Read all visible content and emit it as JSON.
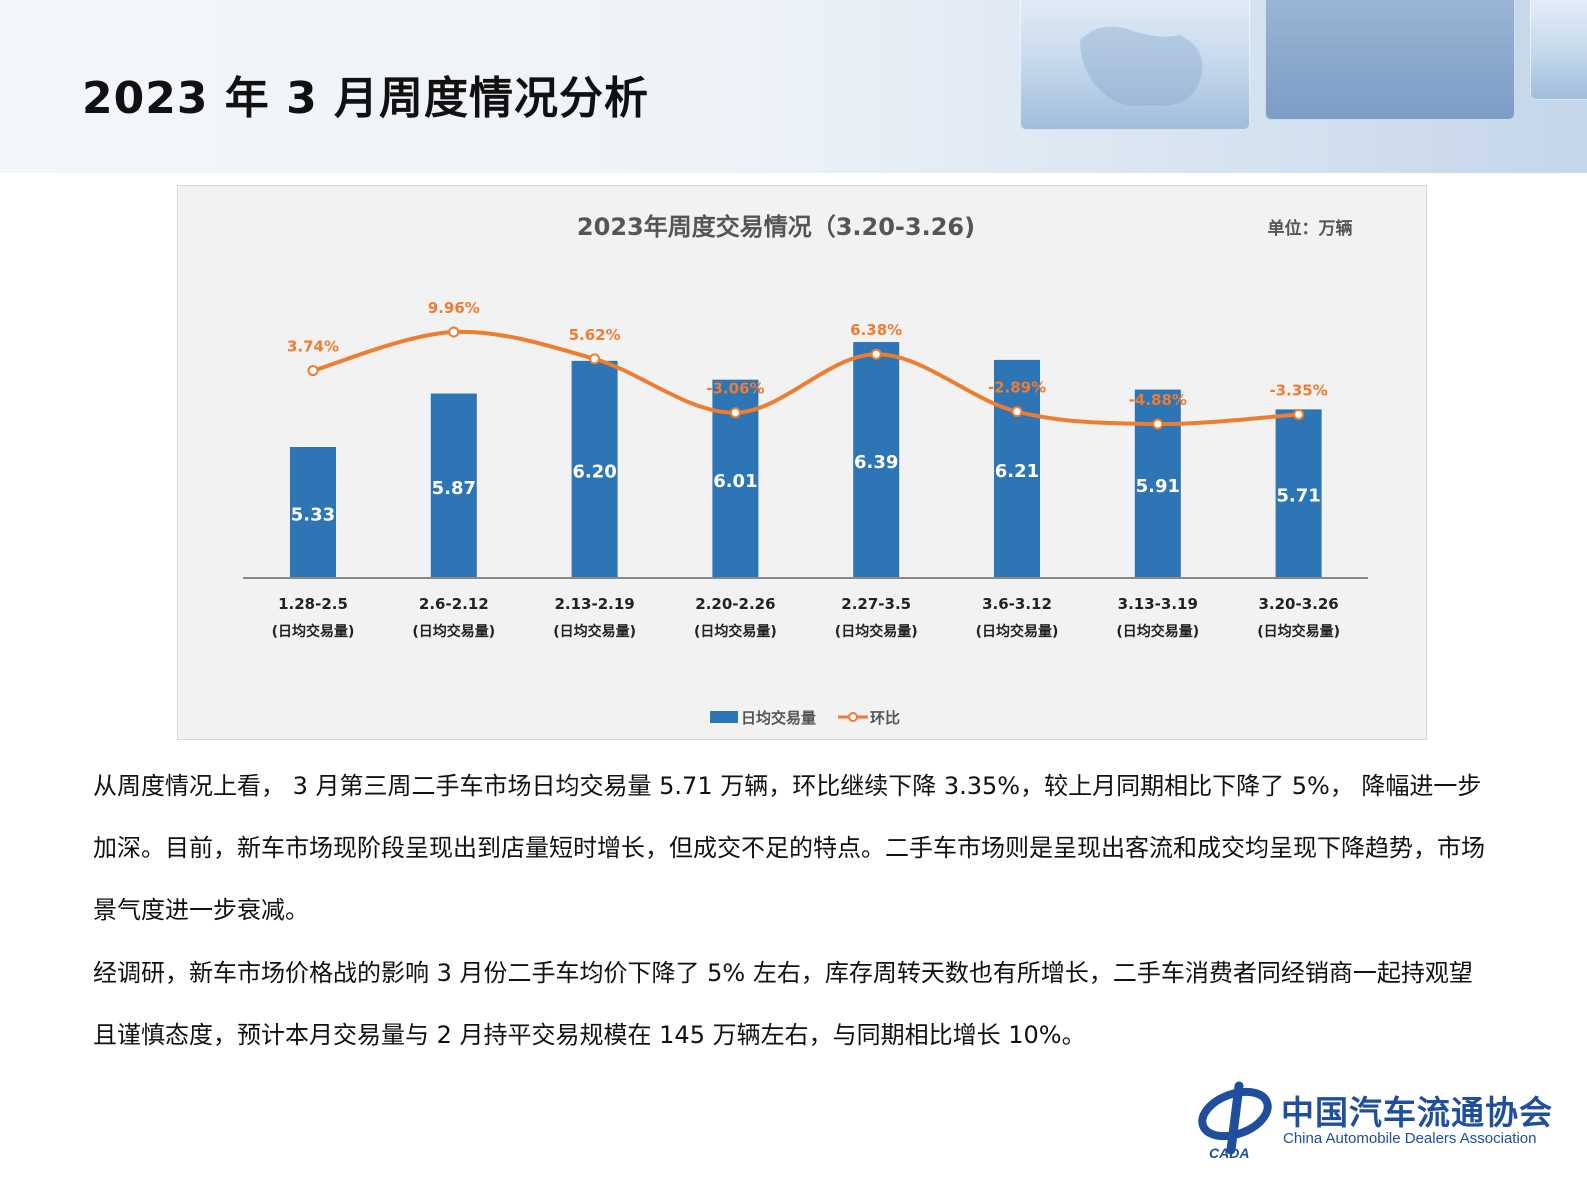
{
  "page": {
    "title": "2023 年 3 月周度情况分析"
  },
  "chart_data": {
    "type": "bar",
    "title": "2023年周度交易情况（3.20-3.26)",
    "unit": "单位：万辆",
    "categories": [
      "1.28-2.5",
      "2.6-2.12",
      "2.13-2.19",
      "2.20-2.26",
      "2.27-3.5",
      "3.6-3.12",
      "3.13-3.19",
      "3.20-3.26"
    ],
    "category_sub": "(日均交易量)",
    "series": [
      {
        "name": "日均交易量",
        "type": "bar",
        "color": "#2e75b6",
        "values": [
          5.33,
          5.87,
          6.2,
          6.01,
          6.39,
          6.21,
          5.91,
          5.71
        ],
        "labels": [
          "5.33",
          "5.87",
          "6.20",
          "6.01",
          "6.39",
          "6.21",
          "5.91",
          "5.71"
        ]
      },
      {
        "name": "环比",
        "type": "line",
        "color": "#ed7d31",
        "values": [
          3.74,
          9.96,
          5.62,
          -3.06,
          6.38,
          -2.89,
          -4.88,
          -3.35
        ],
        "labels": [
          "3.74%",
          "9.96%",
          "5.62%",
          "-3.06%",
          "6.38%",
          "-2.89%",
          "-4.88%",
          "-3.35%"
        ]
      }
    ],
    "legend": "bottom",
    "grid": false
  },
  "text": {
    "p1": "从周度情况上看， 3 月第三周二手车市场日均交易量 5.71 万辆，环比继续下降 3.35%，较上月同期相比下降了 5%， 降幅进一步加深。目前，新车市场现阶段呈现出到店量短时增长，但成交不足的特点。二手车市场则是呈现出客流和成交均呈现下降趋势，市场景气度进一步衰减。",
    "p2": "经调研，新车市场价格战的影响 3 月份二手车均价下降了 5% 左右，库存周转天数也有所增长，二手车消费者同经销商一起持观望且谨慎态度，预计本月交易量与 2 月持平交易规模在 145 万辆左右，与同期相比增长 10%。"
  },
  "logo": {
    "name_cn": "中国汽车流通协会",
    "name_en": "China Automobile Dealers Association",
    "abbr": "CADA"
  }
}
